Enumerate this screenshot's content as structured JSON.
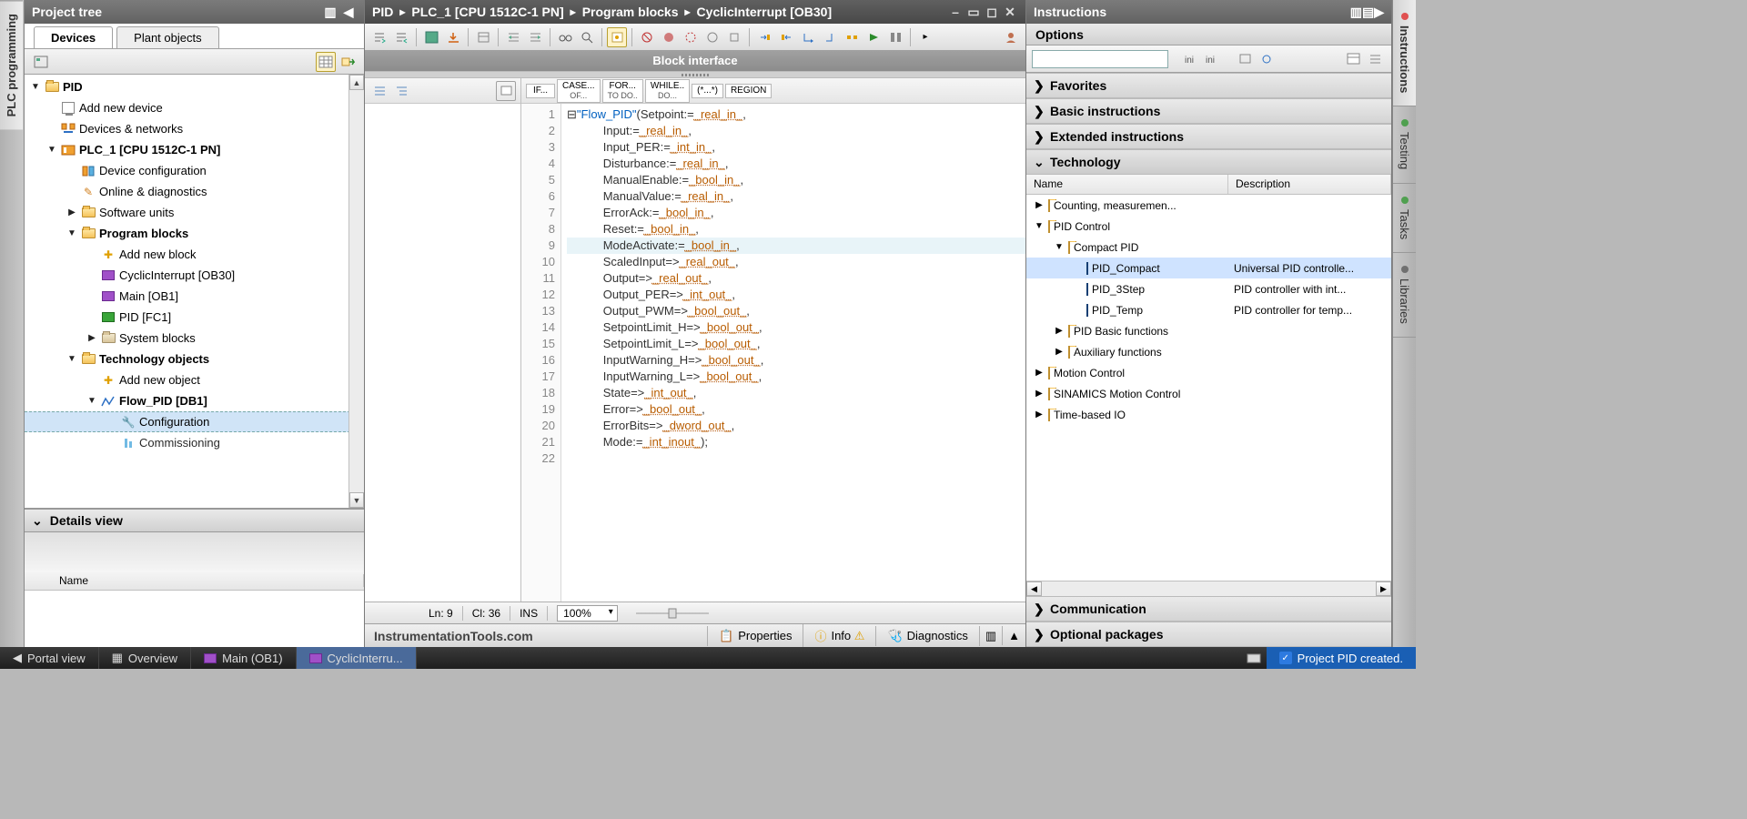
{
  "left_vtabs": {
    "plc_programming": "PLC programming"
  },
  "right_vtabs": {
    "instructions": "Instructions",
    "testing": "Testing",
    "tasks": "Tasks",
    "libraries": "Libraries"
  },
  "project_tree": {
    "title": "Project tree",
    "tabs": {
      "devices": "Devices",
      "plant_objects": "Plant objects"
    },
    "details_header": "Details view",
    "columns": {
      "name": "Name"
    },
    "nodes": {
      "root": "PID",
      "add_device": "Add new device",
      "devices_networks": "Devices & networks",
      "plc1": "PLC_1 [CPU 1512C-1 PN]",
      "device_config": "Device configuration",
      "online_diag": "Online & diagnostics",
      "software_units": "Software units",
      "program_blocks": "Program blocks",
      "add_block": "Add new block",
      "cyclic_interrupt": "CyclicInterrupt [OB30]",
      "main_ob1": "Main [OB1]",
      "pid_fc1": "PID [FC1]",
      "system_blocks": "System blocks",
      "tech_objects": "Technology objects",
      "add_object": "Add new object",
      "flow_pid": "Flow_PID [DB1]",
      "configuration": "Configuration",
      "commissioning": "Commissioning"
    }
  },
  "editor": {
    "breadcrumb": [
      "PID",
      "PLC_1 [CPU 1512C-1 PN]",
      "Program blocks",
      "CyclicInterrupt [OB30]"
    ],
    "block_interface": "Block interface",
    "snippets": {
      "if": "IF...",
      "case1": "CASE...",
      "case2": "OF...",
      "for1": "FOR...",
      "for2": "TO DO..",
      "while1": "WHILE..",
      "while2": "DO...",
      "comment": "(*...*)",
      "region": "REGION"
    },
    "code_lines": [
      {
        "n": 1,
        "pre": "",
        "call": "\"Flow_PID\"",
        "open": "(",
        "name": "Setpoint",
        "op": ":=",
        "ph": "_real_in_",
        "end": ","
      },
      {
        "n": 2,
        "name": "Input",
        "op": ":=",
        "ph": "_real_in_",
        "end": ","
      },
      {
        "n": 3,
        "name": "Input_PER",
        "op": ":=",
        "ph": "_int_in_",
        "end": ","
      },
      {
        "n": 4,
        "name": "Disturbance",
        "op": ":=",
        "ph": "_real_in_",
        "end": ","
      },
      {
        "n": 5,
        "name": "ManualEnable",
        "op": ":=",
        "ph": "_bool_in_",
        "end": ","
      },
      {
        "n": 6,
        "name": "ManualValue",
        "op": ":=",
        "ph": "_real_in_",
        "end": ","
      },
      {
        "n": 7,
        "name": "ErrorAck",
        "op": ":=",
        "ph": "_bool_in_",
        "end": ","
      },
      {
        "n": 8,
        "name": "Reset",
        "op": ":=",
        "ph": "_bool_in_",
        "end": ","
      },
      {
        "n": 9,
        "name": "ModeActivate",
        "op": ":=",
        "ph": "_bool_in_",
        "end": ",",
        "hl": true
      },
      {
        "n": 10,
        "name": "ScaledInput",
        "op": "=>",
        "ph": "_real_out_",
        "end": ","
      },
      {
        "n": 11,
        "name": "Output",
        "op": "=>",
        "ph": "_real_out_",
        "end": ","
      },
      {
        "n": 12,
        "name": "Output_PER",
        "op": "=>",
        "ph": "_int_out_",
        "end": ","
      },
      {
        "n": 13,
        "name": "Output_PWM",
        "op": "=>",
        "ph": "_bool_out_",
        "end": ","
      },
      {
        "n": 14,
        "name": "SetpointLimit_H",
        "op": "=>",
        "ph": "_bool_out_",
        "end": ","
      },
      {
        "n": 15,
        "name": "SetpointLimit_L",
        "op": "=>",
        "ph": "_bool_out_",
        "end": ","
      },
      {
        "n": 16,
        "name": "InputWarning_H",
        "op": "=>",
        "ph": "_bool_out_",
        "end": ","
      },
      {
        "n": 17,
        "name": "InputWarning_L",
        "op": "=>",
        "ph": "_bool_out_",
        "end": ","
      },
      {
        "n": 18,
        "name": "State",
        "op": "=>",
        "ph": "_int_out_",
        "end": ","
      },
      {
        "n": 19,
        "name": "Error",
        "op": "=>",
        "ph": "_bool_out_",
        "end": ","
      },
      {
        "n": 20,
        "name": "ErrorBits",
        "op": "=>",
        "ph": "_dword_out_",
        "end": ","
      },
      {
        "n": 21,
        "name": "Mode",
        "op": ":=",
        "ph": "_int_inout_",
        "end": ");"
      },
      {
        "n": 22,
        "blank": true
      }
    ],
    "status": {
      "ln_label": "Ln:",
      "ln": "9",
      "col_label": "Cl:",
      "col": "36",
      "ins": "INS",
      "zoom": "100%"
    },
    "watermark": "InstrumentationTools.com",
    "bottom_tabs": {
      "properties": "Properties",
      "info": "Info",
      "diagnostics": "Diagnostics"
    }
  },
  "instructions": {
    "title": "Instructions",
    "options": "Options",
    "categories": {
      "favorites": "Favorites",
      "basic": "Basic instructions",
      "extended": "Extended instructions",
      "technology": "Technology",
      "communication": "Communication",
      "optional": "Optional packages"
    },
    "columns": {
      "name": "Name",
      "description": "Description"
    },
    "tech_tree": {
      "counting": "Counting, measuremen...",
      "pid_control": "PID Control",
      "compact_pid": "Compact PID",
      "pid_compact": {
        "name": "PID_Compact",
        "desc": "Universal PID controlle..."
      },
      "pid_3step": {
        "name": "PID_3Step",
        "desc": "PID controller with int..."
      },
      "pid_temp": {
        "name": "PID_Temp",
        "desc": "PID controller for temp..."
      },
      "pid_basic": "PID Basic functions",
      "aux": "Auxiliary functions",
      "motion": "Motion Control",
      "sinamics": "SINAMICS Motion Control",
      "time_io": "Time-based IO"
    }
  },
  "taskbar": {
    "portal": "Portal view",
    "overview": "Overview",
    "main": "Main (OB1)",
    "cyclic": "CyclicInterru...",
    "status": "Project PID created."
  }
}
